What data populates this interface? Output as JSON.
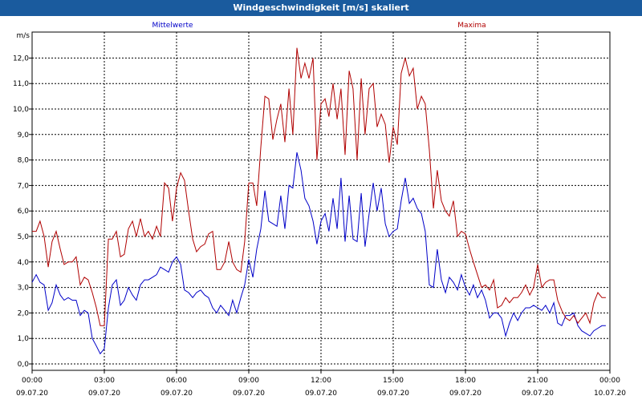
{
  "window": {
    "title": "Windgeschwindigkeit [m/s] skaliert"
  },
  "chart_data": {
    "type": "line",
    "title": "Windgeschwindigkeit [m/s] skaliert",
    "ylabel": "m/s",
    "ylim": [
      0,
      12.5
    ],
    "xlim_hours": [
      0,
      24
    ],
    "grid": true,
    "legend": [
      "Mittelwerte",
      "Maxima"
    ],
    "y_ticks": [
      "0,0",
      "1,0",
      "2,0",
      "3,0",
      "4,0",
      "5,0",
      "6,0",
      "7,0",
      "8,0",
      "9,0",
      "10,0",
      "11,0",
      "12,0"
    ],
    "x_ticks": [
      {
        "time": "00:00",
        "date": "09.07.20"
      },
      {
        "time": "03:00",
        "date": "09.07.20"
      },
      {
        "time": "06:00",
        "date": "09.07.20"
      },
      {
        "time": "09:00",
        "date": "09.07.20"
      },
      {
        "time": "12:00",
        "date": "09.07.20"
      },
      {
        "time": "15:00",
        "date": "09.07.20"
      },
      {
        "time": "18:00",
        "date": "09.07.20"
      },
      {
        "time": "21:00",
        "date": "09.07.20"
      },
      {
        "time": "00:00",
        "date": "10.07.20"
      }
    ],
    "series": [
      {
        "name": "Mittelwerte",
        "color": "#0000c8",
        "points": [
          [
            0.0,
            3.2
          ],
          [
            0.17,
            3.5
          ],
          [
            0.33,
            3.2
          ],
          [
            0.5,
            3.1
          ],
          [
            0.67,
            2.1
          ],
          [
            0.83,
            2.4
          ],
          [
            1.0,
            3.1
          ],
          [
            1.17,
            2.7
          ],
          [
            1.33,
            2.5
          ],
          [
            1.5,
            2.6
          ],
          [
            1.67,
            2.5
          ],
          [
            1.83,
            2.5
          ],
          [
            2.0,
            1.9
          ],
          [
            2.17,
            2.1
          ],
          [
            2.33,
            2.0
          ],
          [
            2.5,
            1.0
          ],
          [
            2.67,
            0.7
          ],
          [
            2.83,
            0.4
          ],
          [
            3.0,
            0.6
          ],
          [
            3.17,
            2.2
          ],
          [
            3.33,
            3.1
          ],
          [
            3.5,
            3.3
          ],
          [
            3.67,
            2.3
          ],
          [
            3.83,
            2.5
          ],
          [
            4.0,
            3.0
          ],
          [
            4.17,
            2.7
          ],
          [
            4.33,
            2.5
          ],
          [
            4.5,
            3.1
          ],
          [
            4.67,
            3.3
          ],
          [
            4.83,
            3.3
          ],
          [
            5.0,
            3.4
          ],
          [
            5.17,
            3.5
          ],
          [
            5.33,
            3.8
          ],
          [
            5.5,
            3.7
          ],
          [
            5.67,
            3.6
          ],
          [
            5.83,
            4.0
          ],
          [
            6.0,
            4.2
          ],
          [
            6.17,
            3.9
          ],
          [
            6.33,
            2.9
          ],
          [
            6.5,
            2.8
          ],
          [
            6.67,
            2.6
          ],
          [
            6.83,
            2.8
          ],
          [
            7.0,
            2.9
          ],
          [
            7.17,
            2.7
          ],
          [
            7.33,
            2.6
          ],
          [
            7.5,
            2.2
          ],
          [
            7.67,
            2.0
          ],
          [
            7.83,
            2.3
          ],
          [
            8.0,
            2.1
          ],
          [
            8.17,
            1.9
          ],
          [
            8.33,
            2.5
          ],
          [
            8.5,
            2.0
          ],
          [
            8.67,
            2.6
          ],
          [
            8.83,
            3.1
          ],
          [
            9.0,
            4.1
          ],
          [
            9.17,
            3.4
          ],
          [
            9.33,
            4.5
          ],
          [
            9.5,
            5.3
          ],
          [
            9.67,
            6.8
          ],
          [
            9.83,
            5.6
          ],
          [
            10.0,
            5.5
          ],
          [
            10.17,
            5.4
          ],
          [
            10.33,
            6.6
          ],
          [
            10.5,
            5.3
          ],
          [
            10.67,
            7.0
          ],
          [
            10.83,
            6.9
          ],
          [
            11.0,
            8.3
          ],
          [
            11.17,
            7.6
          ],
          [
            11.33,
            6.5
          ],
          [
            11.5,
            6.2
          ],
          [
            11.67,
            5.6
          ],
          [
            11.83,
            4.7
          ],
          [
            12.0,
            5.6
          ],
          [
            12.17,
            5.9
          ],
          [
            12.33,
            5.2
          ],
          [
            12.5,
            6.5
          ],
          [
            12.67,
            5.3
          ],
          [
            12.83,
            7.3
          ],
          [
            13.0,
            4.8
          ],
          [
            13.17,
            6.6
          ],
          [
            13.33,
            4.9
          ],
          [
            13.5,
            4.8
          ],
          [
            13.67,
            6.7
          ],
          [
            13.83,
            4.6
          ],
          [
            14.0,
            5.9
          ],
          [
            14.17,
            7.1
          ],
          [
            14.33,
            6.0
          ],
          [
            14.5,
            6.9
          ],
          [
            14.67,
            5.5
          ],
          [
            14.83,
            5.0
          ],
          [
            15.0,
            5.2
          ],
          [
            15.17,
            5.3
          ],
          [
            15.33,
            6.4
          ],
          [
            15.5,
            7.3
          ],
          [
            15.67,
            6.3
          ],
          [
            15.83,
            6.5
          ],
          [
            16.0,
            6.1
          ],
          [
            16.17,
            5.9
          ],
          [
            16.33,
            5.2
          ],
          [
            16.5,
            3.1
          ],
          [
            16.67,
            3.0
          ],
          [
            16.83,
            4.5
          ],
          [
            17.0,
            3.3
          ],
          [
            17.17,
            2.8
          ],
          [
            17.33,
            3.4
          ],
          [
            17.5,
            3.2
          ],
          [
            17.67,
            2.9
          ],
          [
            17.83,
            3.5
          ],
          [
            18.0,
            3.0
          ],
          [
            18.17,
            2.7
          ],
          [
            18.33,
            3.1
          ],
          [
            18.5,
            2.6
          ],
          [
            18.67,
            2.9
          ],
          [
            18.83,
            2.5
          ],
          [
            19.0,
            1.8
          ],
          [
            19.17,
            2.0
          ],
          [
            19.33,
            2.0
          ],
          [
            19.5,
            1.8
          ],
          [
            19.67,
            1.1
          ],
          [
            19.83,
            1.6
          ],
          [
            20.0,
            2.0
          ],
          [
            20.17,
            1.7
          ],
          [
            20.33,
            2.0
          ],
          [
            20.5,
            2.2
          ],
          [
            20.67,
            2.2
          ],
          [
            20.83,
            2.3
          ],
          [
            21.0,
            2.2
          ],
          [
            21.17,
            2.1
          ],
          [
            21.33,
            2.3
          ],
          [
            21.5,
            2.0
          ],
          [
            21.67,
            2.4
          ],
          [
            21.83,
            1.6
          ],
          [
            22.0,
            1.5
          ],
          [
            22.17,
            1.9
          ],
          [
            22.33,
            1.9
          ],
          [
            22.5,
            2.0
          ],
          [
            22.67,
            1.5
          ],
          [
            22.83,
            1.3
          ],
          [
            23.0,
            1.2
          ],
          [
            23.17,
            1.1
          ],
          [
            23.33,
            1.3
          ],
          [
            23.5,
            1.4
          ],
          [
            23.67,
            1.5
          ],
          [
            23.83,
            1.5
          ]
        ]
      },
      {
        "name": "Maxima",
        "color": "#b00000",
        "points": [
          [
            0.0,
            5.2
          ],
          [
            0.17,
            5.2
          ],
          [
            0.33,
            5.6
          ],
          [
            0.5,
            5.0
          ],
          [
            0.67,
            3.8
          ],
          [
            0.83,
            4.8
          ],
          [
            1.0,
            5.2
          ],
          [
            1.17,
            4.5
          ],
          [
            1.33,
            3.9
          ],
          [
            1.5,
            4.0
          ],
          [
            1.67,
            4.0
          ],
          [
            1.83,
            4.2
          ],
          [
            2.0,
            3.1
          ],
          [
            2.17,
            3.4
          ],
          [
            2.33,
            3.3
          ],
          [
            2.5,
            2.8
          ],
          [
            2.67,
            2.2
          ],
          [
            2.83,
            1.5
          ],
          [
            3.0,
            1.5
          ],
          [
            3.17,
            4.9
          ],
          [
            3.33,
            4.9
          ],
          [
            3.5,
            5.2
          ],
          [
            3.67,
            4.2
          ],
          [
            3.83,
            4.3
          ],
          [
            4.0,
            5.3
          ],
          [
            4.17,
            5.6
          ],
          [
            4.33,
            5.0
          ],
          [
            4.5,
            5.7
          ],
          [
            4.67,
            5.0
          ],
          [
            4.83,
            5.2
          ],
          [
            5.0,
            4.9
          ],
          [
            5.17,
            5.4
          ],
          [
            5.33,
            5.0
          ],
          [
            5.5,
            7.1
          ],
          [
            5.67,
            6.9
          ],
          [
            5.83,
            5.6
          ],
          [
            6.0,
            6.9
          ],
          [
            6.17,
            7.5
          ],
          [
            6.33,
            7.2
          ],
          [
            6.5,
            6.0
          ],
          [
            6.67,
            4.9
          ],
          [
            6.83,
            4.4
          ],
          [
            7.0,
            4.6
          ],
          [
            7.17,
            4.7
          ],
          [
            7.33,
            5.1
          ],
          [
            7.5,
            5.2
          ],
          [
            7.67,
            3.7
          ],
          [
            7.83,
            3.7
          ],
          [
            8.0,
            4.0
          ],
          [
            8.17,
            4.8
          ],
          [
            8.33,
            4.0
          ],
          [
            8.5,
            3.7
          ],
          [
            8.67,
            3.6
          ],
          [
            8.83,
            4.8
          ],
          [
            9.0,
            7.1
          ],
          [
            9.17,
            7.1
          ],
          [
            9.33,
            6.2
          ],
          [
            9.5,
            8.5
          ],
          [
            9.67,
            10.5
          ],
          [
            9.83,
            10.4
          ],
          [
            10.0,
            8.8
          ],
          [
            10.17,
            9.6
          ],
          [
            10.33,
            10.2
          ],
          [
            10.5,
            8.7
          ],
          [
            10.67,
            10.8
          ],
          [
            10.83,
            9.0
          ],
          [
            11.0,
            12.4
          ],
          [
            11.17,
            11.2
          ],
          [
            11.33,
            11.8
          ],
          [
            11.5,
            11.2
          ],
          [
            11.67,
            12.0
          ],
          [
            11.83,
            8.0
          ],
          [
            12.0,
            10.2
          ],
          [
            12.17,
            10.4
          ],
          [
            12.33,
            9.7
          ],
          [
            12.5,
            11.0
          ],
          [
            12.67,
            9.6
          ],
          [
            12.83,
            10.8
          ],
          [
            13.0,
            8.2
          ],
          [
            13.17,
            11.5
          ],
          [
            13.33,
            10.8
          ],
          [
            13.5,
            8.0
          ],
          [
            13.67,
            11.2
          ],
          [
            13.83,
            9.0
          ],
          [
            14.0,
            10.8
          ],
          [
            14.17,
            11.0
          ],
          [
            14.33,
            9.3
          ],
          [
            14.5,
            9.8
          ],
          [
            14.67,
            9.4
          ],
          [
            14.83,
            7.9
          ],
          [
            15.0,
            9.3
          ],
          [
            15.17,
            8.6
          ],
          [
            15.33,
            11.4
          ],
          [
            15.5,
            12.0
          ],
          [
            15.67,
            11.3
          ],
          [
            15.83,
            11.6
          ],
          [
            16.0,
            10.0
          ],
          [
            16.17,
            10.5
          ],
          [
            16.33,
            10.2
          ],
          [
            16.5,
            8.4
          ],
          [
            16.67,
            6.1
          ],
          [
            16.83,
            7.6
          ],
          [
            17.0,
            6.4
          ],
          [
            17.17,
            6.0
          ],
          [
            17.33,
            5.8
          ],
          [
            17.5,
            6.4
          ],
          [
            17.67,
            5.0
          ],
          [
            17.83,
            5.2
          ],
          [
            18.0,
            5.1
          ],
          [
            18.17,
            4.5
          ],
          [
            18.33,
            4.0
          ],
          [
            18.5,
            3.5
          ],
          [
            18.67,
            3.0
          ],
          [
            18.83,
            3.1
          ],
          [
            19.0,
            2.9
          ],
          [
            19.17,
            3.3
          ],
          [
            19.33,
            2.2
          ],
          [
            19.5,
            2.3
          ],
          [
            19.67,
            2.6
          ],
          [
            19.83,
            2.4
          ],
          [
            20.0,
            2.6
          ],
          [
            20.17,
            2.6
          ],
          [
            20.33,
            2.8
          ],
          [
            20.5,
            3.1
          ],
          [
            20.67,
            2.7
          ],
          [
            20.83,
            3.0
          ],
          [
            21.0,
            3.9
          ],
          [
            21.17,
            3.0
          ],
          [
            21.33,
            3.2
          ],
          [
            21.5,
            3.3
          ],
          [
            21.67,
            3.3
          ],
          [
            21.83,
            2.5
          ],
          [
            22.0,
            2.1
          ],
          [
            22.17,
            1.8
          ],
          [
            22.33,
            1.7
          ],
          [
            22.5,
            1.9
          ],
          [
            22.67,
            1.6
          ],
          [
            22.83,
            1.8
          ],
          [
            23.0,
            2.0
          ],
          [
            23.17,
            1.6
          ],
          [
            23.33,
            2.4
          ],
          [
            23.5,
            2.8
          ],
          [
            23.67,
            2.6
          ],
          [
            23.83,
            2.6
          ]
        ]
      }
    ]
  }
}
